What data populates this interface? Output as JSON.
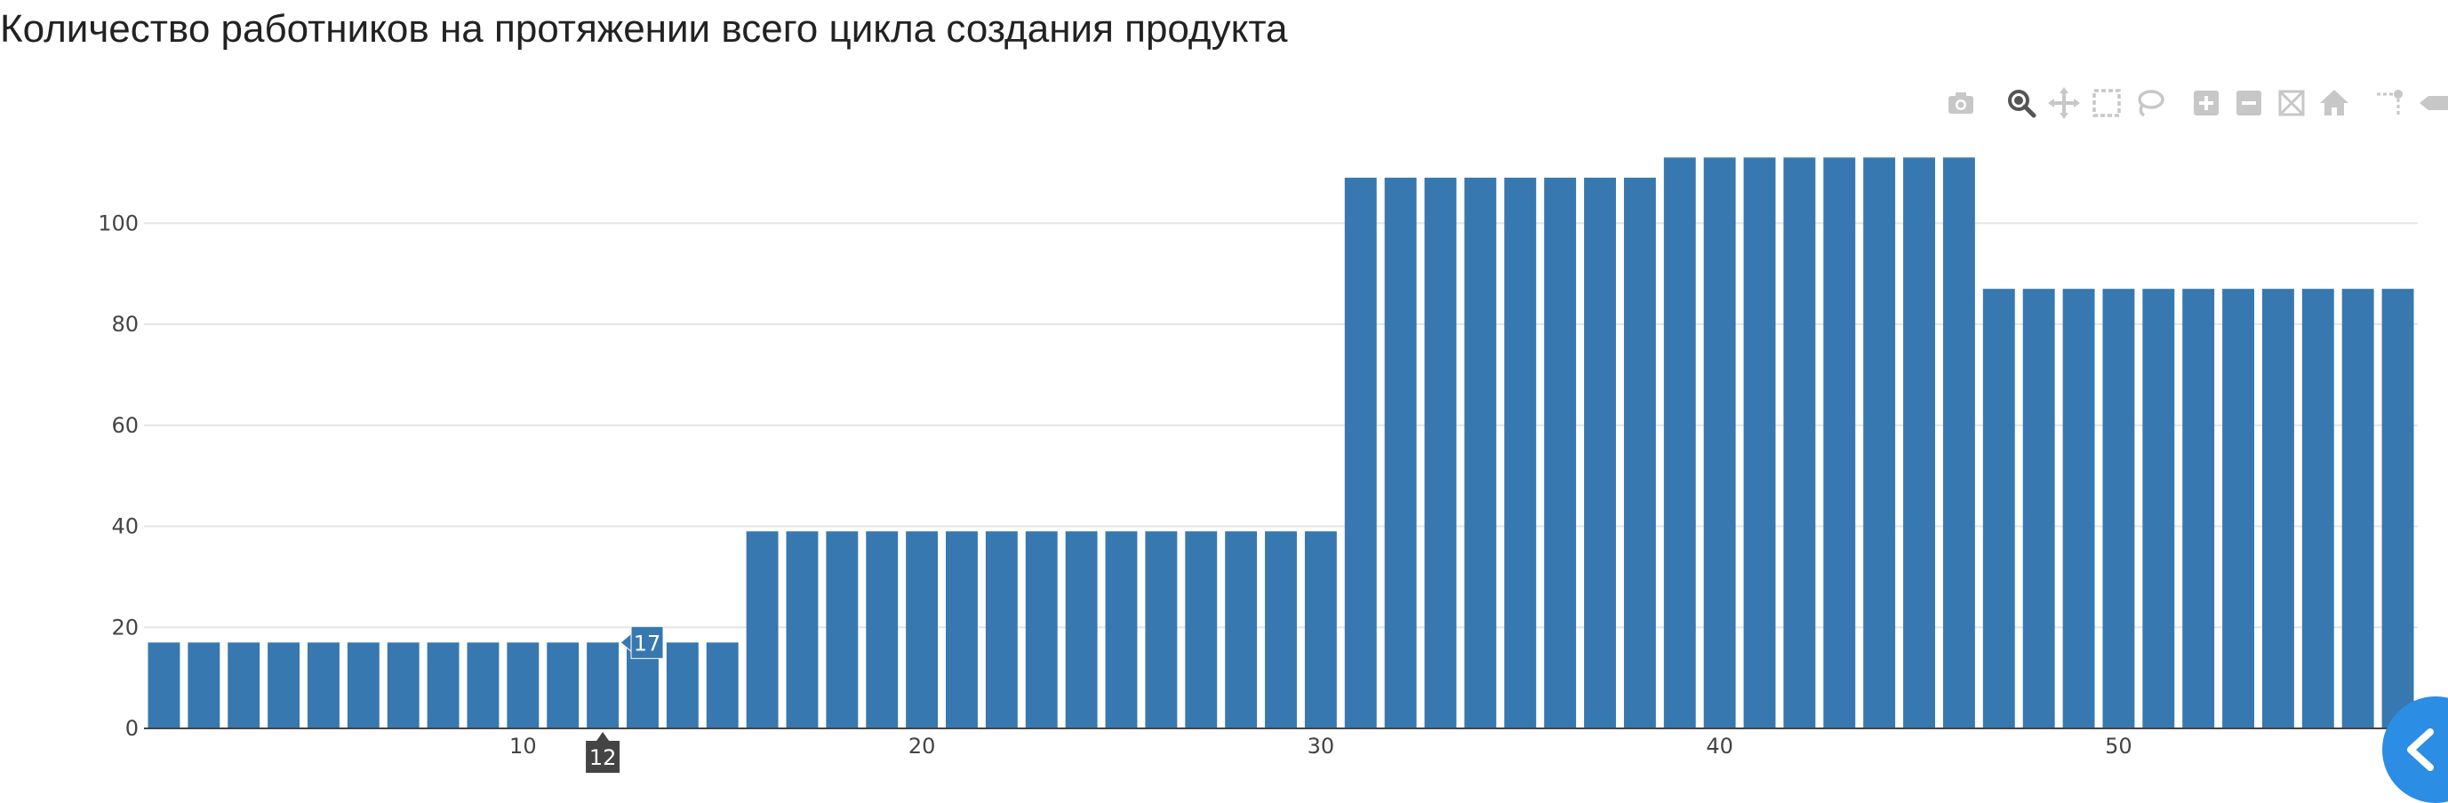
{
  "chart_data": {
    "type": "bar",
    "title": "Количество работников на протяжении всего цикла создания продукта",
    "xlabel": "",
    "ylabel": "",
    "x": [
      1,
      2,
      3,
      4,
      5,
      6,
      7,
      8,
      9,
      10,
      11,
      12,
      13,
      14,
      15,
      16,
      17,
      18,
      19,
      20,
      21,
      22,
      23,
      24,
      25,
      26,
      27,
      28,
      29,
      30,
      31,
      32,
      33,
      34,
      35,
      36,
      37,
      38,
      39,
      40,
      41,
      42,
      43,
      44,
      45,
      46,
      47,
      48,
      49,
      50,
      51,
      52,
      53,
      54,
      55,
      56,
      57
    ],
    "values": [
      17,
      17,
      17,
      17,
      17,
      17,
      17,
      17,
      17,
      17,
      17,
      17,
      17,
      17,
      17,
      39,
      39,
      39,
      39,
      39,
      39,
      39,
      39,
      39,
      39,
      39,
      39,
      39,
      39,
      39,
      109,
      109,
      109,
      109,
      109,
      109,
      109,
      109,
      113,
      113,
      113,
      113,
      113,
      113,
      113,
      113,
      87,
      87,
      87,
      87,
      87,
      87,
      87,
      87,
      87,
      87,
      87
    ],
    "xlim": [
      0.5,
      57.5
    ],
    "ylim": [
      0,
      128
    ],
    "x_ticks": [
      10,
      20,
      30,
      40,
      50
    ],
    "y_ticks": [
      0,
      20,
      40,
      60,
      80,
      100
    ],
    "grid": true,
    "bar_color": "#3778b0",
    "hover": {
      "x": 12,
      "x_label": "12",
      "y_label": "17"
    }
  },
  "modebar": {
    "buttons": [
      "camera-icon",
      "zoom-icon",
      "pan-icon",
      "box-select-icon",
      "lasso-select-icon",
      "zoom-in-icon",
      "zoom-out-icon",
      "autoscale-icon",
      "reset-axes-icon",
      "spike-lines-icon",
      "hover-toggle-icon"
    ]
  }
}
